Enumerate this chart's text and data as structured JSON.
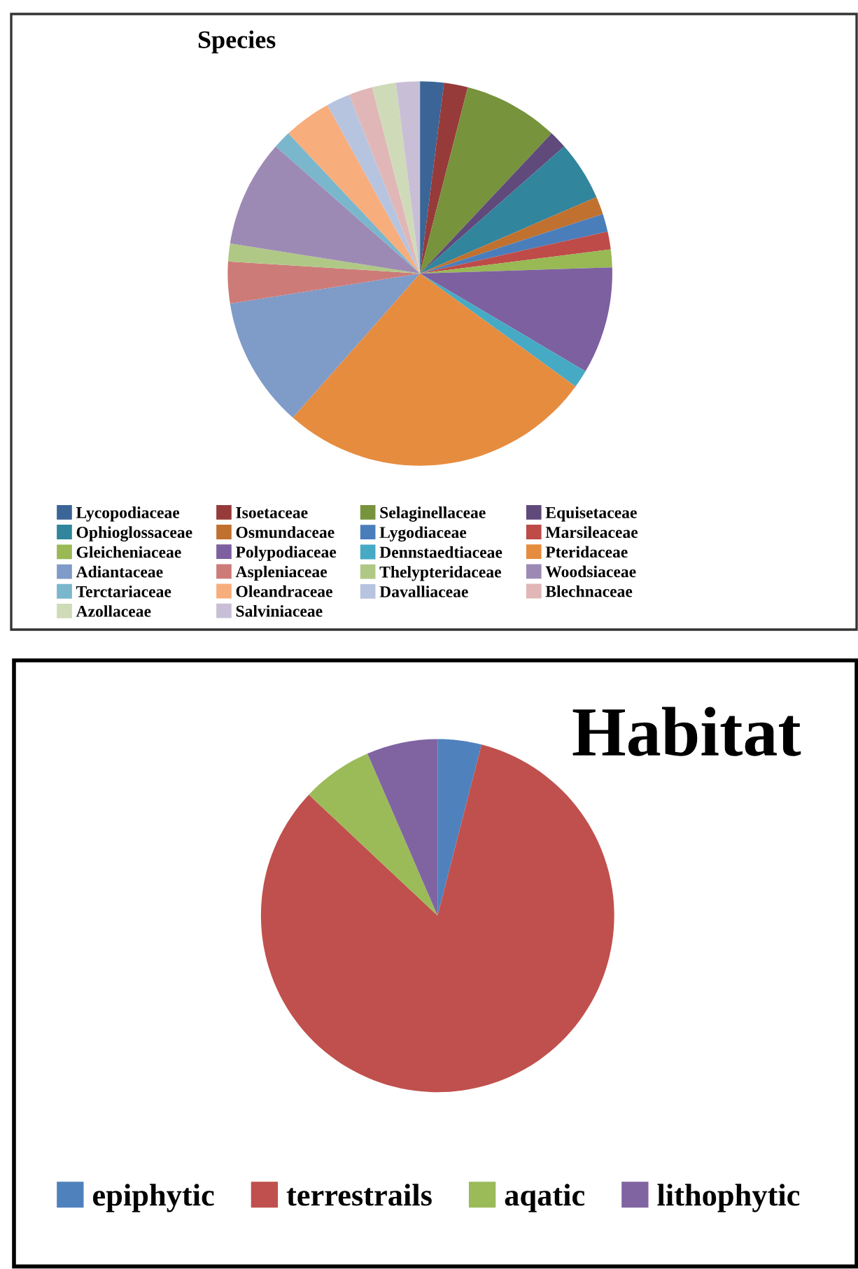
{
  "chart_data": [
    {
      "type": "pie",
      "title": "Species",
      "legend": "bottom",
      "categories": [
        "Lycopodiaceae",
        "Isoetaceae",
        "Selaginellaceae",
        "Equisetaceae",
        "Ophioglossaceae",
        "Osmundaceae",
        "Lygodiaceae",
        "Marsileaceae",
        "Gleicheniaceae",
        "Polypodiaceae",
        "Dennstaedtiaceae",
        "Pteridaceae",
        "Adiantaceae",
        "Aspleniaceae",
        "Thelypteridaceae",
        "Woodsiaceae",
        "Terctariaceae",
        "Oleandraceae",
        "Davalliaceae",
        "Blechnaceae",
        "Azollaceae",
        "Salviniaceae"
      ],
      "values": [
        2,
        2,
        8,
        1.5,
        5,
        1.5,
        1.5,
        1.5,
        1.5,
        9,
        1.5,
        26.5,
        11,
        3.5,
        1.5,
        9,
        1.5,
        4,
        2,
        2,
        2,
        2
      ],
      "colors": [
        "#3a6596",
        "#963b3a",
        "#77933c",
        "#604a7b",
        "#31859c",
        "#c0712f",
        "#4a7ebb",
        "#be4b48",
        "#98b954",
        "#7d60a0",
        "#46aac5",
        "#e68c3f",
        "#7f9bc8",
        "#cd7b78",
        "#b0c886",
        "#9d8ab4",
        "#7ab6cc",
        "#f7ad7c",
        "#b7c4e0",
        "#e0b7b6",
        "#cfdbb8",
        "#c8bfd6"
      ]
    },
    {
      "type": "pie",
      "title": "Habitat",
      "legend": "bottom",
      "categories": [
        "epiphytic",
        "terrestrails",
        "aqatic",
        "lithophytic"
      ],
      "values": [
        4,
        83,
        6.5,
        6.5
      ],
      "colors": [
        "#4f81bd",
        "#c0504d",
        "#9bbb59",
        "#8064a2"
      ]
    }
  ]
}
